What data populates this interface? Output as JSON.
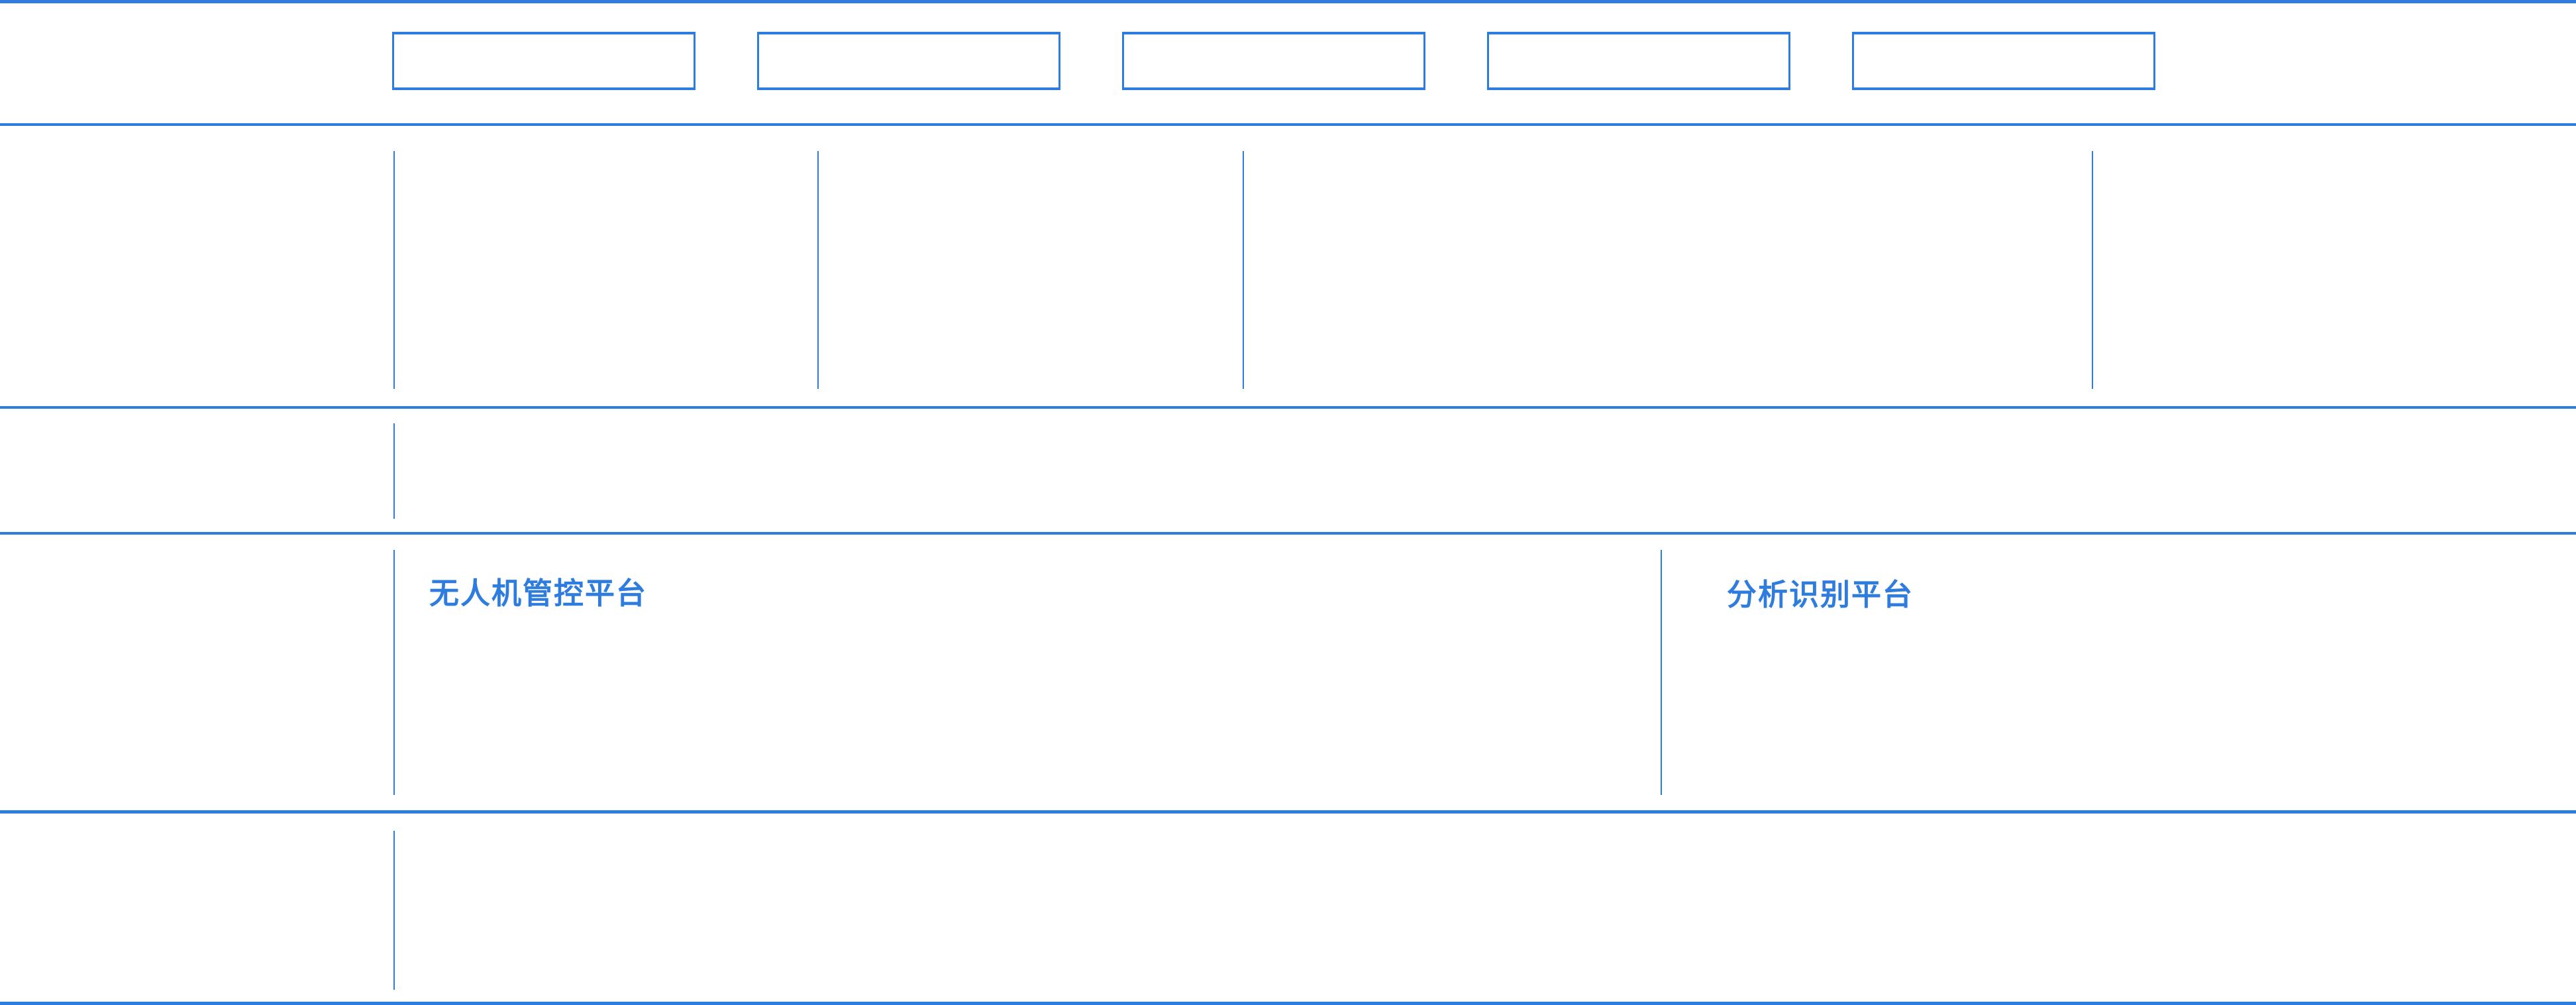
{
  "accent_color": "#2e7dde",
  "nav_boxes": [
    {
      "label": ""
    },
    {
      "label": ""
    },
    {
      "label": ""
    },
    {
      "label": ""
    },
    {
      "label": ""
    }
  ],
  "platforms": {
    "left": {
      "title": "无人机管控平台"
    },
    "right": {
      "title": "分析识别平台"
    }
  }
}
